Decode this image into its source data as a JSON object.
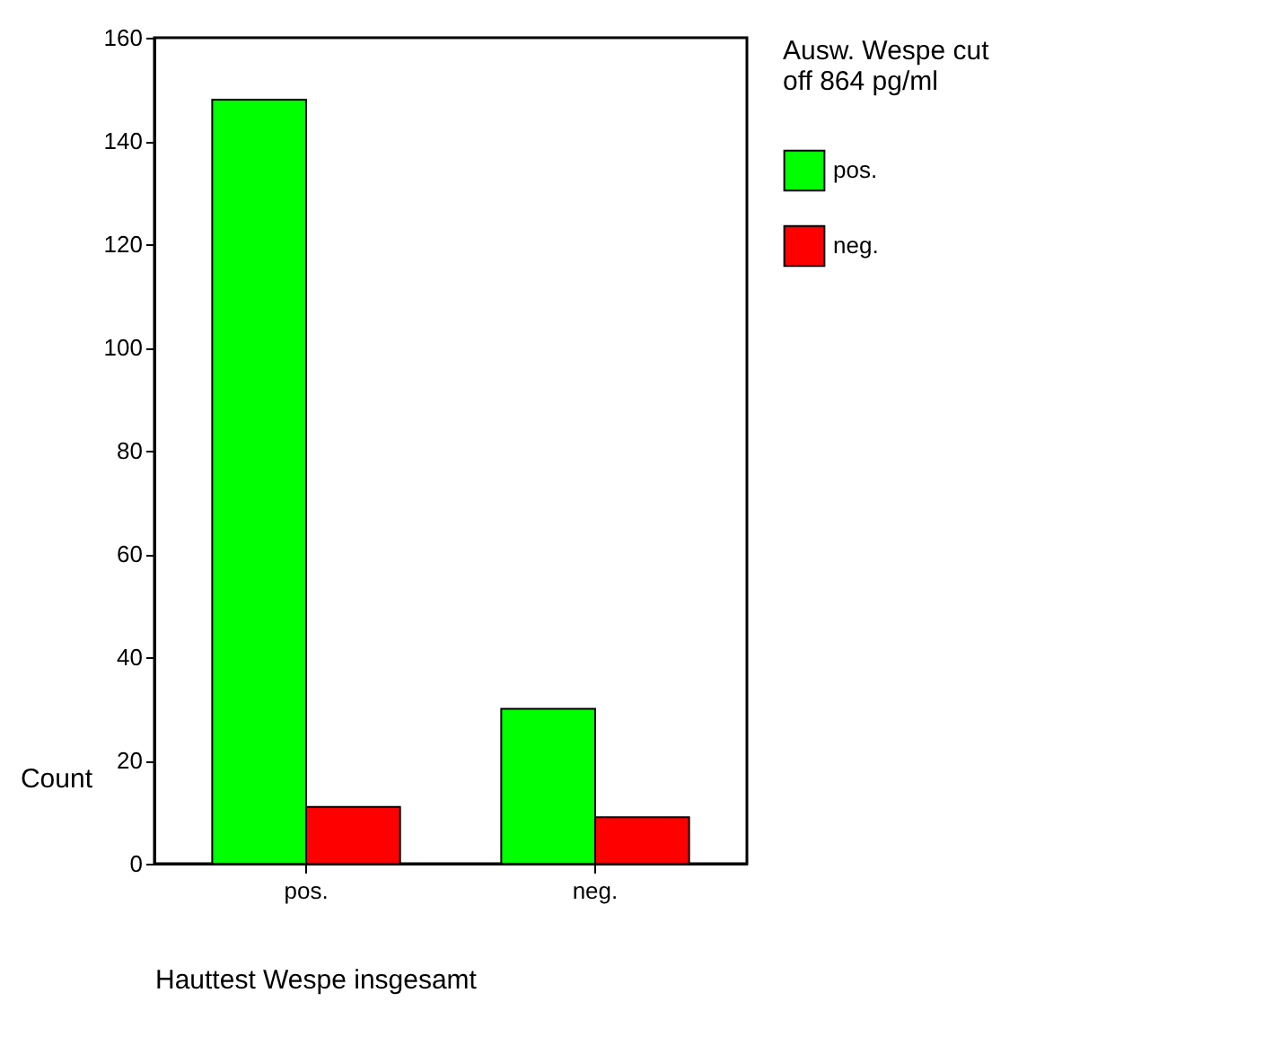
{
  "chart_data": {
    "type": "bar",
    "categories": [
      "pos.",
      "neg."
    ],
    "series": [
      {
        "name": "pos.",
        "color": "#00ff00",
        "values": [
          148,
          30
        ]
      },
      {
        "name": "neg.",
        "color": "#ff0000",
        "values": [
          11,
          9
        ]
      }
    ],
    "xlabel": "Hauttest Wespe insgesamt",
    "ylabel": "Count",
    "legend_title": "Ausw. Wespe cut off 864 pg/ml",
    "ylim": [
      0,
      160
    ],
    "yticks": [
      0,
      20,
      40,
      60,
      80,
      100,
      120,
      140,
      160
    ],
    "grid": false,
    "legend": "right"
  }
}
